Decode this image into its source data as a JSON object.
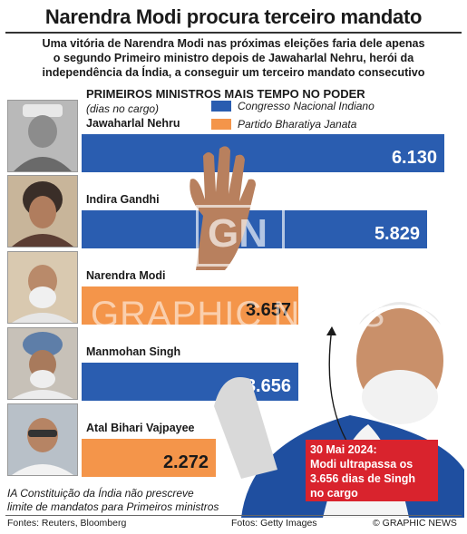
{
  "title": "Narendra Modi procura terceiro mandato",
  "subtitle": {
    "line1": "Uma vitória de Narendra Modi nas próximas eleições faria dele apenas",
    "line2": "o segundo Primeiro ministro depois de Jawaharlal Nehru, herói da",
    "line3": "independência da Índia, a conseguir um terceiro mandato consecutivo"
  },
  "colors": {
    "congress": "#2a5db0",
    "bjp": "#f4954a",
    "callout": "#d9232d"
  },
  "icons": [
    "person-portrait-icon",
    "waving-hand-icon"
  ],
  "chart_data": {
    "type": "bar",
    "orientation": "horizontal",
    "title": "PRIMEIROS MINISTROS MAIS TEMPO NO PODER",
    "unit_label": "(dias no cargo)",
    "legend": {
      "placement": "top-right",
      "entries": [
        {
          "name": "Congresso Nacional Indiano",
          "color": "#2a5db0"
        },
        {
          "name": "Partido Bharatiya Janata",
          "color": "#f4954a"
        }
      ]
    },
    "xlim": [
      0,
      6400
    ],
    "grid": false,
    "categories": [
      "Jawaharlal Nehru",
      "Indira Gandhi",
      "Narendra Modi",
      "Manmohan Singh",
      "Atal Bihari Vajpayee"
    ],
    "values": [
      6130,
      5829,
      3657,
      3656,
      2272
    ],
    "value_labels": [
      "6.130",
      "5.829",
      "3.657",
      "3.656",
      "2.272"
    ],
    "party": [
      "congress",
      "congress",
      "bjp",
      "congress",
      "bjp"
    ]
  },
  "callout": {
    "line1": "30 Mai 2024:",
    "line2": "Modi ultrapassa os",
    "line3": "3.656 dias de Singh",
    "line4": "no cargo"
  },
  "footnote": {
    "line1": "IA Constituição da Índia não prescreve",
    "line2": "limite de mandatos para Primeiros ministros"
  },
  "watermark": "GRAPHIC NEWS",
  "watermark_logo": "GN",
  "footer": {
    "sources": "Fontes: Reuters, Bloomberg",
    "photos": "Fotos: Getty Images",
    "credit": "© GRAPHIC NEWS"
  }
}
